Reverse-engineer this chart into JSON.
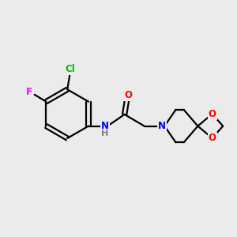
{
  "bg_color": "#ebebeb",
  "line_color": "#000000",
  "bond_width": 1.6,
  "atom_colors": {
    "N": "#0000ff",
    "O": "#ff0000",
    "Cl": "#00bb00",
    "F": "#ff00ff",
    "H": "#808080",
    "C": "#000000"
  },
  "font_size": 8.5,
  "xlim": [
    0,
    10
  ],
  "ylim": [
    1,
    9
  ]
}
